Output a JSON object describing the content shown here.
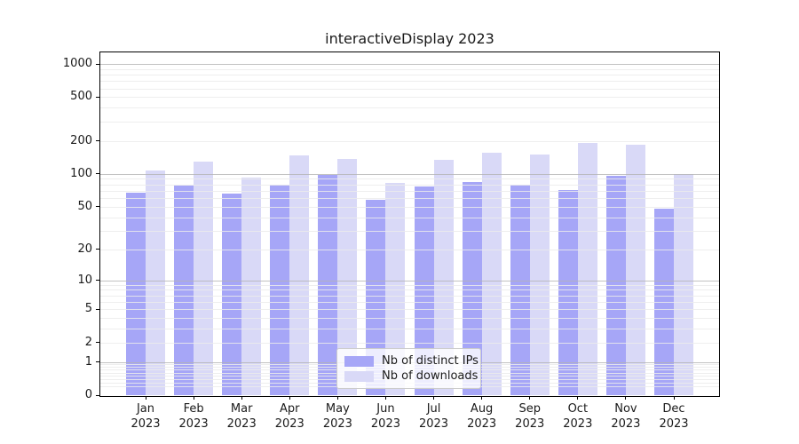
{
  "title": "interactiveDisplay 2023",
  "chart_data": {
    "type": "bar",
    "title": "interactiveDisplay 2023",
    "categories": [
      "Jan",
      "Feb",
      "Mar",
      "Apr",
      "May",
      "Jun",
      "Jul",
      "Aug",
      "Sep",
      "Oct",
      "Nov",
      "Dec"
    ],
    "year": "2023",
    "series": [
      {
        "name": "Nb of distinct IPs",
        "color": "#a6a6f7",
        "values": [
          67,
          78,
          66,
          80,
          97,
          58,
          77,
          84,
          80,
          71,
          96,
          48
        ]
      },
      {
        "name": "Nb of downloads",
        "color": "#d9d9f7",
        "values": [
          107,
          129,
          92,
          147,
          136,
          82,
          134,
          156,
          151,
          190,
          185,
          100
        ]
      }
    ],
    "xlabel": "",
    "ylabel": "",
    "yscale": "log1p",
    "y_ticks": [
      1000,
      500,
      200,
      100,
      50,
      20,
      10,
      5,
      2,
      1,
      0
    ],
    "ylim": [
      0,
      1230
    ],
    "grid": "both",
    "legend_position": "lower center"
  },
  "colors": {
    "bar_distinct_ips": "#a6a6f7",
    "bar_downloads": "#d9d9f7",
    "grid_major": "#b3b3b3",
    "grid_minor": "#ebebeb",
    "axis": "#000000",
    "text": "#1a1a1a",
    "legend_border": "#cccccc"
  }
}
